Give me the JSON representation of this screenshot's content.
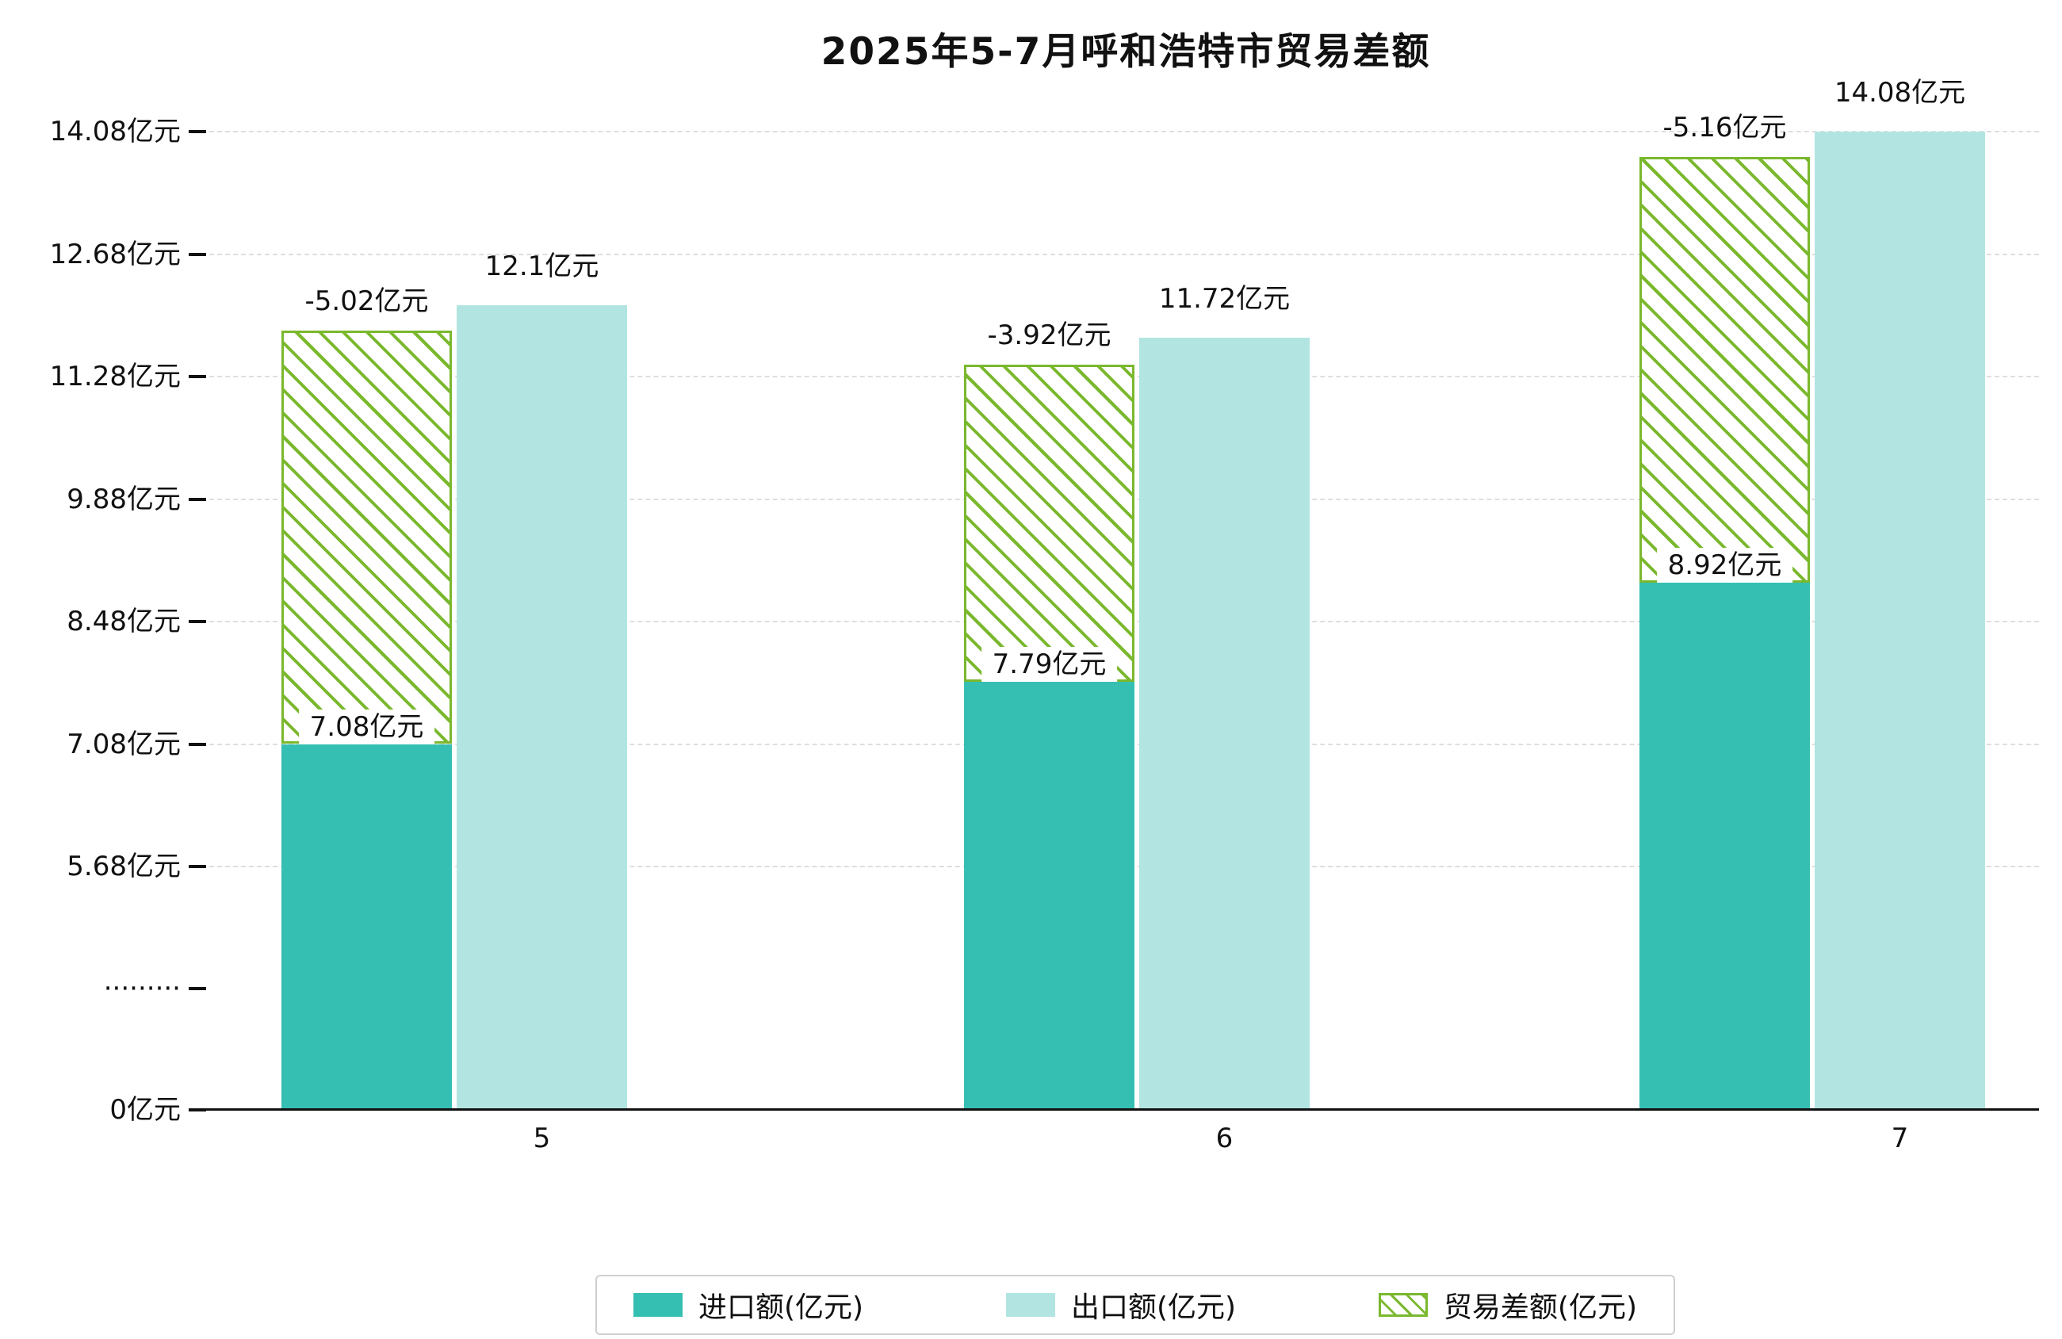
{
  "title": "2025年5-7月呼和浩特市贸易差额",
  "chart_data": {
    "type": "bar",
    "title": "2025年5-7月呼和浩特市贸易差额",
    "categories": [
      "5",
      "6",
      "7"
    ],
    "series": [
      {
        "name": "进口额(亿元)",
        "values": [
          7.08,
          7.79,
          8.92
        ],
        "labels": [
          "7.08亿元",
          "7.79亿元",
          "8.92亿元"
        ],
        "color": "#35bfb2",
        "style": "solid"
      },
      {
        "name": "出口额(亿元)",
        "values": [
          12.1,
          11.72,
          14.08
        ],
        "labels": [
          "12.1亿元",
          "11.72亿元",
          "14.08亿元"
        ],
        "color": "#b2e5e1",
        "style": "solid"
      },
      {
        "name": "贸易差额(亿元)",
        "values": [
          -5.02,
          -3.92,
          -5.16
        ],
        "labels": [
          "-5.02亿元",
          "-3.92亿元",
          "-5.16亿元"
        ],
        "color": "#7ab82e",
        "style": "hatched"
      }
    ],
    "y_axis": {
      "tick_labels": [
        "14.08亿元",
        "12.68亿元",
        "11.28亿元",
        "9.88亿元",
        "8.48亿元",
        "7.08亿元",
        "5.68亿元",
        "·········",
        "0亿元"
      ],
      "tick_values": [
        14.08,
        12.68,
        11.28,
        9.88,
        8.48,
        7.08,
        5.68,
        null,
        0
      ],
      "axis_break_between": [
        0,
        5.68
      ]
    },
    "xlabel": "",
    "ylabel": "",
    "ylim": [
      0,
      14.08
    ],
    "grid": "dashed-horizontal",
    "legend_position": "bottom"
  },
  "legend": {
    "items": [
      {
        "label": "进口额(亿元)",
        "swatch": "solid",
        "color": "#35bfb2"
      },
      {
        "label": "出口额(亿元)",
        "swatch": "solid",
        "color": "#b2e5e1"
      },
      {
        "label": "贸易差额(亿元)",
        "swatch": "hatched",
        "color": "#7ab82e"
      }
    ]
  }
}
